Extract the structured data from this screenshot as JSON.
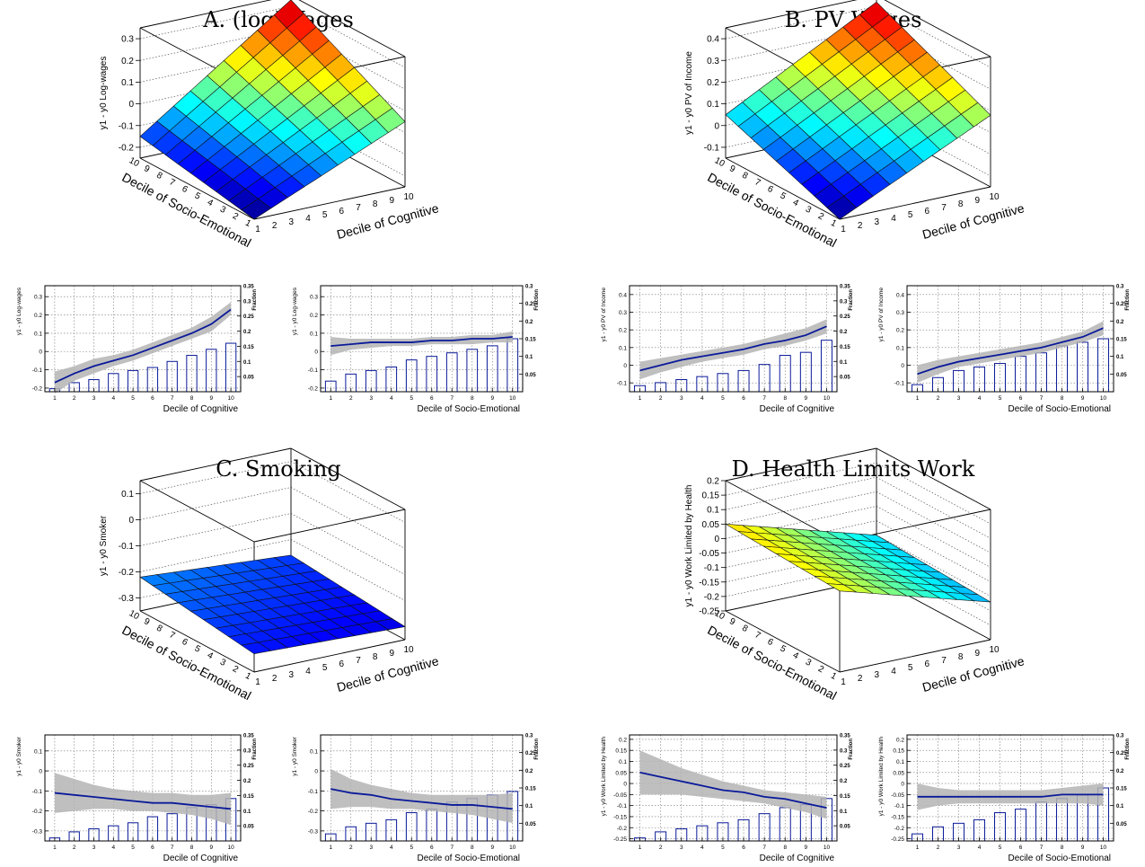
{
  "panels": [
    {
      "title": "A. (log)Wages"
    },
    {
      "title": "B. PV Wages"
    },
    {
      "title": "C. Smoking"
    },
    {
      "title": "D. Health Limits Work"
    }
  ],
  "axis_labels": {
    "cognitive": "Decile of Cognitive",
    "socio": "Decile of Socio-Emotional",
    "fraction": "Fraction"
  },
  "colors": {
    "line": "#0a1a99",
    "band": "#b4b4b4",
    "bar": "#0a1a99"
  },
  "chart_data": [
    {
      "type": "surface",
      "panel": "A",
      "title": "A. (log)Wages",
      "zlabel": "y1 - y0 Log-wages",
      "xlabel": "Decile of Cognitive",
      "ylabel": "Decile of Socio-Emotional",
      "x": [
        1,
        2,
        3,
        4,
        5,
        6,
        7,
        8,
        9,
        10
      ],
      "y": [
        1,
        2,
        3,
        4,
        5,
        6,
        7,
        8,
        9,
        10
      ],
      "zlim": [
        -0.25,
        0.35
      ],
      "zticks": [
        -0.2,
        -0.1,
        0,
        0.1,
        0.2,
        0.3
      ],
      "corner_values": {
        "x1y1": -0.25,
        "x10y1": 0.05,
        "x1y10": -0.15,
        "x10y10": 0.33
      }
    },
    {
      "type": "surface",
      "panel": "B",
      "title": "B. PV Wages",
      "zlabel": "y1 - y0 PV of Income",
      "xlabel": "Decile of Cognitive",
      "ylabel": "Decile of Socio-Emotional",
      "x": [
        1,
        2,
        3,
        4,
        5,
        6,
        7,
        8,
        9,
        10
      ],
      "y": [
        1,
        2,
        3,
        4,
        5,
        6,
        7,
        8,
        9,
        10
      ],
      "zlim": [
        -0.15,
        0.45
      ],
      "zticks": [
        -0.1,
        0,
        0.1,
        0.2,
        0.3,
        0.4
      ],
      "corner_values": {
        "x1y1": -0.15,
        "x10y1": 0.18,
        "x1y10": 0.05,
        "x10y10": 0.42
      }
    },
    {
      "type": "line",
      "panel": "A",
      "xlabel": "Decile of Cognitive",
      "ylabel": "y1 - y0 Log-wages",
      "x": [
        1,
        2,
        3,
        4,
        5,
        6,
        7,
        8,
        9,
        10
      ],
      "y": [
        -0.17,
        -0.12,
        -0.08,
        -0.05,
        -0.02,
        0.02,
        0.06,
        0.1,
        0.15,
        0.23
      ],
      "band_low": [
        -0.23,
        -0.16,
        -0.12,
        -0.08,
        -0.05,
        -0.01,
        0.03,
        0.07,
        0.11,
        0.2
      ],
      "band_high": [
        -0.11,
        -0.08,
        -0.04,
        -0.02,
        0.01,
        0.05,
        0.09,
        0.13,
        0.19,
        0.27
      ],
      "fraction": [
        0.01,
        0.03,
        0.04,
        0.06,
        0.07,
        0.08,
        0.1,
        0.12,
        0.14,
        0.16
      ],
      "ylim": [
        -0.22,
        0.36
      ],
      "yticks": [
        -0.2,
        -0.1,
        0,
        0.1,
        0.2,
        0.3
      ],
      "fraction_lim": [
        0,
        0.35
      ],
      "fraction_ticks": [
        0.05,
        0.1,
        0.15,
        0.2,
        0.25,
        0.3,
        0.35
      ]
    },
    {
      "type": "line",
      "panel": "A",
      "xlabel": "Decile of Socio-Emotional",
      "ylabel": "y1 - y0 Log-wages",
      "x": [
        1,
        2,
        3,
        4,
        5,
        6,
        7,
        8,
        9,
        10
      ],
      "y": [
        0.03,
        0.04,
        0.05,
        0.05,
        0.05,
        0.06,
        0.06,
        0.07,
        0.07,
        0.08
      ],
      "band_low": [
        -0.02,
        0.01,
        0.02,
        0.03,
        0.03,
        0.04,
        0.04,
        0.04,
        0.05,
        0.05
      ],
      "band_high": [
        0.08,
        0.07,
        0.07,
        0.07,
        0.07,
        0.08,
        0.08,
        0.09,
        0.09,
        0.11
      ],
      "fraction": [
        0.03,
        0.05,
        0.06,
        0.07,
        0.09,
        0.1,
        0.11,
        0.12,
        0.13,
        0.15
      ],
      "ylim": [
        -0.22,
        0.36
      ],
      "yticks": [
        -0.2,
        -0.1,
        0,
        0.1,
        0.2,
        0.3
      ],
      "fraction_lim": [
        0,
        0.3
      ],
      "fraction_ticks": [
        0.05,
        0.1,
        0.15,
        0.2,
        0.25,
        0.3
      ]
    },
    {
      "type": "line",
      "panel": "B",
      "xlabel": "Decile of Cognitive",
      "ylabel": "y1 - y0 PV of Income",
      "x": [
        1,
        2,
        3,
        4,
        5,
        6,
        7,
        8,
        9,
        10
      ],
      "y": [
        -0.03,
        0,
        0.03,
        0.05,
        0.07,
        0.09,
        0.12,
        0.14,
        0.17,
        0.22
      ],
      "band_low": [
        -0.08,
        -0.04,
        -0.01,
        0.02,
        0.04,
        0.06,
        0.09,
        0.11,
        0.14,
        0.18
      ],
      "band_high": [
        0.02,
        0.04,
        0.06,
        0.08,
        0.1,
        0.12,
        0.15,
        0.18,
        0.21,
        0.26
      ],
      "fraction": [
        0.02,
        0.03,
        0.04,
        0.05,
        0.06,
        0.07,
        0.09,
        0.12,
        0.13,
        0.17
      ],
      "ylim": [
        -0.15,
        0.45
      ],
      "yticks": [
        -0.1,
        0,
        0.1,
        0.2,
        0.3,
        0.4
      ],
      "fraction_lim": [
        0,
        0.35
      ],
      "fraction_ticks": [
        0.05,
        0.1,
        0.15,
        0.2,
        0.25,
        0.3,
        0.35
      ]
    },
    {
      "type": "line",
      "panel": "B",
      "xlabel": "Decile of Socio-Emotional",
      "ylabel": "y1 - y0 PV of Income",
      "x": [
        1,
        2,
        3,
        4,
        5,
        6,
        7,
        8,
        9,
        10
      ],
      "y": [
        -0.05,
        -0.01,
        0.02,
        0.04,
        0.06,
        0.08,
        0.1,
        0.13,
        0.16,
        0.21
      ],
      "band_low": [
        -0.1,
        -0.05,
        -0.01,
        0.01,
        0.03,
        0.05,
        0.07,
        0.1,
        0.13,
        0.17
      ],
      "band_high": [
        0,
        0.03,
        0.05,
        0.07,
        0.09,
        0.11,
        0.13,
        0.16,
        0.19,
        0.25
      ],
      "fraction": [
        0.02,
        0.04,
        0.06,
        0.07,
        0.08,
        0.1,
        0.11,
        0.13,
        0.14,
        0.15
      ],
      "ylim": [
        -0.15,
        0.45
      ],
      "yticks": [
        -0.1,
        0,
        0.1,
        0.2,
        0.3,
        0.4
      ],
      "fraction_lim": [
        0,
        0.3
      ],
      "fraction_ticks": [
        0.05,
        0.1,
        0.15,
        0.2,
        0.25,
        0.3
      ]
    },
    {
      "type": "surface",
      "panel": "C",
      "title": "C. Smoking",
      "zlabel": "y1 - y0 Smoker",
      "xlabel": "Decile of Cognitive",
      "ylabel": "Decile of Socio-Emotional",
      "x": [
        1,
        2,
        3,
        4,
        5,
        6,
        7,
        8,
        9,
        10
      ],
      "y": [
        1,
        2,
        3,
        4,
        5,
        6,
        7,
        8,
        9,
        10
      ],
      "zlim": [
        -0.35,
        0.15
      ],
      "zticks": [
        -0.3,
        -0.2,
        -0.1,
        0,
        0.1
      ],
      "corner_values": {
        "x1y1": -0.28,
        "x10y1": -0.3,
        "x1y10": -0.22,
        "x10y10": -0.26
      }
    },
    {
      "type": "surface",
      "panel": "D",
      "title": "D. Health Limits Work",
      "zlabel": "y1 - y0 Work Limited by Health",
      "xlabel": "Decile of Cognitive",
      "ylabel": "Decile of Socio-Emotional",
      "x": [
        1,
        2,
        3,
        4,
        5,
        6,
        7,
        8,
        9,
        10
      ],
      "y": [
        1,
        2,
        3,
        4,
        5,
        6,
        7,
        8,
        9,
        10
      ],
      "zlim": [
        -0.25,
        0.2
      ],
      "zticks": [
        -0.25,
        -0.2,
        -0.15,
        -0.1,
        -0.05,
        0,
        0.05,
        0.1,
        0.15,
        0.2
      ],
      "corner_values": {
        "x1y1": 0.03,
        "x10y1": -0.12,
        "x1y10": 0.05,
        "x10y10": -0.1
      }
    },
    {
      "type": "line",
      "panel": "C",
      "xlabel": "Decile of Cognitive",
      "ylabel": "y1 - y0 Smoker",
      "x": [
        1,
        2,
        3,
        4,
        5,
        6,
        7,
        8,
        9,
        10
      ],
      "y": [
        -0.11,
        -0.12,
        -0.13,
        -0.14,
        -0.15,
        -0.16,
        -0.16,
        -0.17,
        -0.18,
        -0.19
      ],
      "band_low": [
        -0.21,
        -0.2,
        -0.19,
        -0.19,
        -0.2,
        -0.2,
        -0.21,
        -0.22,
        -0.24,
        -0.27
      ],
      "band_high": [
        -0.01,
        -0.04,
        -0.07,
        -0.09,
        -0.1,
        -0.11,
        -0.11,
        -0.12,
        -0.12,
        -0.11
      ],
      "fraction": [
        0.01,
        0.03,
        0.04,
        0.05,
        0.06,
        0.08,
        0.09,
        0.11,
        0.12,
        0.14
      ],
      "ylim": [
        -0.35,
        0.18
      ],
      "yticks": [
        -0.3,
        -0.2,
        -0.1,
        0,
        0.1
      ],
      "fraction_lim": [
        0,
        0.35
      ],
      "fraction_ticks": [
        0.05,
        0.1,
        0.15,
        0.2,
        0.25,
        0.3,
        0.35
      ]
    },
    {
      "type": "line",
      "panel": "C",
      "xlabel": "Decile of Socio-Emotional",
      "ylabel": "y1 - y0 Smoker",
      "x": [
        1,
        2,
        3,
        4,
        5,
        6,
        7,
        8,
        9,
        10
      ],
      "y": [
        -0.09,
        -0.11,
        -0.12,
        -0.14,
        -0.15,
        -0.16,
        -0.17,
        -0.17,
        -0.18,
        -0.19
      ],
      "band_low": [
        -0.19,
        -0.18,
        -0.18,
        -0.19,
        -0.19,
        -0.2,
        -0.21,
        -0.22,
        -0.24,
        -0.26
      ],
      "band_high": [
        0.01,
        -0.04,
        -0.07,
        -0.09,
        -0.11,
        -0.12,
        -0.12,
        -0.12,
        -0.12,
        -0.11
      ],
      "fraction": [
        0.02,
        0.04,
        0.05,
        0.06,
        0.08,
        0.09,
        0.11,
        0.12,
        0.13,
        0.14
      ],
      "ylim": [
        -0.35,
        0.18
      ],
      "yticks": [
        -0.3,
        -0.2,
        -0.1,
        0,
        0.1
      ],
      "fraction_lim": [
        0,
        0.3
      ],
      "fraction_ticks": [
        0.05,
        0.1,
        0.15,
        0.2,
        0.25,
        0.3
      ]
    },
    {
      "type": "line",
      "panel": "D",
      "xlabel": "Decile of Cognitive",
      "ylabel": "y1 - y0 Work Limited by Health",
      "x": [
        1,
        2,
        3,
        4,
        5,
        6,
        7,
        8,
        9,
        10
      ],
      "y": [
        0.05,
        0.03,
        0.01,
        -0.01,
        -0.03,
        -0.04,
        -0.06,
        -0.07,
        -0.09,
        -0.11
      ],
      "band_low": [
        -0.05,
        -0.05,
        -0.05,
        -0.06,
        -0.07,
        -0.08,
        -0.09,
        -0.11,
        -0.13,
        -0.16
      ],
      "band_high": [
        0.15,
        0.11,
        0.07,
        0.04,
        0.01,
        -0.01,
        -0.03,
        -0.04,
        -0.05,
        -0.06
      ],
      "fraction": [
        0.01,
        0.03,
        0.04,
        0.05,
        0.06,
        0.07,
        0.09,
        0.11,
        0.12,
        0.14
      ],
      "ylim": [
        -0.26,
        0.22
      ],
      "yticks": [
        -0.25,
        -0.2,
        -0.15,
        -0.1,
        -0.05,
        0,
        0.05,
        0.1,
        0.15,
        0.2
      ],
      "fraction_lim": [
        0,
        0.35
      ],
      "fraction_ticks": [
        0.05,
        0.1,
        0.15,
        0.2,
        0.25,
        0.3,
        0.35
      ]
    },
    {
      "type": "line",
      "panel": "D",
      "xlabel": "Decile of Socio-Emotional",
      "ylabel": "y1 - y0 Work Limited by Health",
      "x": [
        1,
        2,
        3,
        4,
        5,
        6,
        7,
        8,
        9,
        10
      ],
      "y": [
        -0.06,
        -0.06,
        -0.06,
        -0.06,
        -0.06,
        -0.06,
        -0.06,
        -0.05,
        -0.05,
        -0.05
      ],
      "band_low": [
        -0.12,
        -0.1,
        -0.09,
        -0.09,
        -0.09,
        -0.09,
        -0.09,
        -0.09,
        -0.09,
        -0.1
      ],
      "band_high": [
        0,
        -0.02,
        -0.03,
        -0.03,
        -0.03,
        -0.03,
        -0.03,
        -0.02,
        -0.01,
        0
      ],
      "fraction": [
        0.02,
        0.04,
        0.05,
        0.06,
        0.08,
        0.09,
        0.11,
        0.12,
        0.13,
        0.15
      ],
      "ylim": [
        -0.26,
        0.22
      ],
      "yticks": [
        -0.25,
        -0.2,
        -0.15,
        -0.1,
        -0.05,
        0,
        0.05,
        0.1,
        0.15,
        0.2
      ],
      "fraction_lim": [
        0,
        0.3
      ],
      "fraction_ticks": [
        0.05,
        0.1,
        0.15,
        0.2,
        0.25,
        0.3
      ]
    }
  ]
}
